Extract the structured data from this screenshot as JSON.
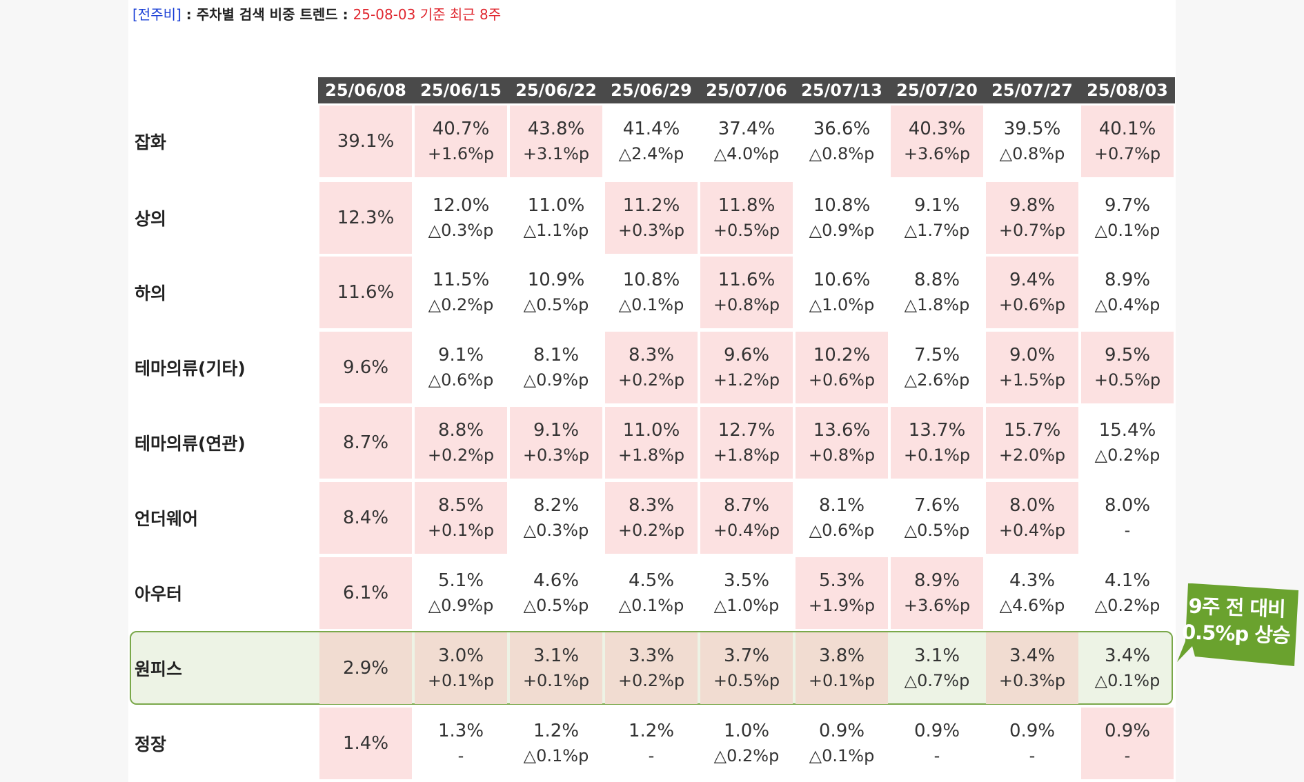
{
  "heading": {
    "tag": "[전주비]",
    "colon1": " : ",
    "title": "주차별 검색 비중 트렌드",
    "colon2": " : ",
    "basis": "25-08-03 기준 최근 8주"
  },
  "dates": [
    "25/06/08",
    "25/06/15",
    "25/06/22",
    "25/06/29",
    "25/07/06",
    "25/07/13",
    "25/07/20",
    "25/07/27",
    "25/08/03"
  ],
  "rows": [
    {
      "label": "잡화",
      "cells": [
        {
          "value": "39.1%",
          "delta": "",
          "hl": true
        },
        {
          "value": "40.7%",
          "delta": "+1.6%p",
          "hl": true
        },
        {
          "value": "43.8%",
          "delta": "+3.1%p",
          "hl": true
        },
        {
          "value": "41.4%",
          "delta": "△2.4%p",
          "hl": false
        },
        {
          "value": "37.4%",
          "delta": "△4.0%p",
          "hl": false
        },
        {
          "value": "36.6%",
          "delta": "△0.8%p",
          "hl": false
        },
        {
          "value": "40.3%",
          "delta": "+3.6%p",
          "hl": true
        },
        {
          "value": "39.5%",
          "delta": "△0.8%p",
          "hl": false
        },
        {
          "value": "40.1%",
          "delta": "+0.7%p",
          "hl": true
        }
      ]
    },
    {
      "label": "상의",
      "cells": [
        {
          "value": "12.3%",
          "delta": "",
          "hl": true
        },
        {
          "value": "12.0%",
          "delta": "△0.3%p",
          "hl": false
        },
        {
          "value": "11.0%",
          "delta": "△1.1%p",
          "hl": false
        },
        {
          "value": "11.2%",
          "delta": "+0.3%p",
          "hl": true
        },
        {
          "value": "11.8%",
          "delta": "+0.5%p",
          "hl": true
        },
        {
          "value": "10.8%",
          "delta": "△0.9%p",
          "hl": false
        },
        {
          "value": "9.1%",
          "delta": "△1.7%p",
          "hl": false
        },
        {
          "value": "9.8%",
          "delta": "+0.7%p",
          "hl": true
        },
        {
          "value": "9.7%",
          "delta": "△0.1%p",
          "hl": false
        }
      ]
    },
    {
      "label": "하의",
      "cells": [
        {
          "value": "11.6%",
          "delta": "",
          "hl": true
        },
        {
          "value": "11.5%",
          "delta": "△0.2%p",
          "hl": false
        },
        {
          "value": "10.9%",
          "delta": "△0.5%p",
          "hl": false
        },
        {
          "value": "10.8%",
          "delta": "△0.1%p",
          "hl": false
        },
        {
          "value": "11.6%",
          "delta": "+0.8%p",
          "hl": true
        },
        {
          "value": "10.6%",
          "delta": "△1.0%p",
          "hl": false
        },
        {
          "value": "8.8%",
          "delta": "△1.8%p",
          "hl": false
        },
        {
          "value": "9.4%",
          "delta": "+0.6%p",
          "hl": true
        },
        {
          "value": "8.9%",
          "delta": "△0.4%p",
          "hl": false
        }
      ]
    },
    {
      "label": "테마의류(기타)",
      "cells": [
        {
          "value": "9.6%",
          "delta": "",
          "hl": true
        },
        {
          "value": "9.1%",
          "delta": "△0.6%p",
          "hl": false
        },
        {
          "value": "8.1%",
          "delta": "△0.9%p",
          "hl": false
        },
        {
          "value": "8.3%",
          "delta": "+0.2%p",
          "hl": true
        },
        {
          "value": "9.6%",
          "delta": "+1.2%p",
          "hl": true
        },
        {
          "value": "10.2%",
          "delta": "+0.6%p",
          "hl": true
        },
        {
          "value": "7.5%",
          "delta": "△2.6%p",
          "hl": false
        },
        {
          "value": "9.0%",
          "delta": "+1.5%p",
          "hl": true
        },
        {
          "value": "9.5%",
          "delta": "+0.5%p",
          "hl": true
        }
      ]
    },
    {
      "label": "테마의류(연관)",
      "cells": [
        {
          "value": "8.7%",
          "delta": "",
          "hl": true
        },
        {
          "value": "8.8%",
          "delta": "+0.2%p",
          "hl": true
        },
        {
          "value": "9.1%",
          "delta": "+0.3%p",
          "hl": true
        },
        {
          "value": "11.0%",
          "delta": "+1.8%p",
          "hl": true
        },
        {
          "value": "12.7%",
          "delta": "+1.8%p",
          "hl": true
        },
        {
          "value": "13.6%",
          "delta": "+0.8%p",
          "hl": true
        },
        {
          "value": "13.7%",
          "delta": "+0.1%p",
          "hl": true
        },
        {
          "value": "15.7%",
          "delta": "+2.0%p",
          "hl": true
        },
        {
          "value": "15.4%",
          "delta": "△0.2%p",
          "hl": false
        }
      ]
    },
    {
      "label": "언더웨어",
      "cells": [
        {
          "value": "8.4%",
          "delta": "",
          "hl": true
        },
        {
          "value": "8.5%",
          "delta": "+0.1%p",
          "hl": true
        },
        {
          "value": "8.2%",
          "delta": "△0.3%p",
          "hl": false
        },
        {
          "value": "8.3%",
          "delta": "+0.2%p",
          "hl": true
        },
        {
          "value": "8.7%",
          "delta": "+0.4%p",
          "hl": true
        },
        {
          "value": "8.1%",
          "delta": "△0.6%p",
          "hl": false
        },
        {
          "value": "7.6%",
          "delta": "△0.5%p",
          "hl": false
        },
        {
          "value": "8.0%",
          "delta": "+0.4%p",
          "hl": true
        },
        {
          "value": "8.0%",
          "delta": "-",
          "hl": false
        }
      ]
    },
    {
      "label": "아우터",
      "cells": [
        {
          "value": "6.1%",
          "delta": "",
          "hl": true
        },
        {
          "value": "5.1%",
          "delta": "△0.9%p",
          "hl": false
        },
        {
          "value": "4.6%",
          "delta": "△0.5%p",
          "hl": false
        },
        {
          "value": "4.5%",
          "delta": "△0.1%p",
          "hl": false
        },
        {
          "value": "3.5%",
          "delta": "△1.0%p",
          "hl": false
        },
        {
          "value": "5.3%",
          "delta": "+1.9%p",
          "hl": true
        },
        {
          "value": "8.9%",
          "delta": "+3.6%p",
          "hl": true
        },
        {
          "value": "4.3%",
          "delta": "△4.6%p",
          "hl": false
        },
        {
          "value": "4.1%",
          "delta": "△0.2%p",
          "hl": false
        }
      ]
    },
    {
      "label": "원피스",
      "cells": [
        {
          "value": "2.9%",
          "delta": "",
          "hl": true
        },
        {
          "value": "3.0%",
          "delta": "+0.1%p",
          "hl": true
        },
        {
          "value": "3.1%",
          "delta": "+0.1%p",
          "hl": true
        },
        {
          "value": "3.3%",
          "delta": "+0.2%p",
          "hl": true
        },
        {
          "value": "3.7%",
          "delta": "+0.5%p",
          "hl": true
        },
        {
          "value": "3.8%",
          "delta": "+0.1%p",
          "hl": true
        },
        {
          "value": "3.1%",
          "delta": "△0.7%p",
          "hl": false
        },
        {
          "value": "3.4%",
          "delta": "+0.3%p",
          "hl": true
        },
        {
          "value": "3.4%",
          "delta": "△0.1%p",
          "hl": false
        }
      ]
    },
    {
      "label": "정장",
      "cells": [
        {
          "value": "1.4%",
          "delta": "",
          "hl": true
        },
        {
          "value": "1.3%",
          "delta": "-",
          "hl": false
        },
        {
          "value": "1.2%",
          "delta": "△0.1%p",
          "hl": false
        },
        {
          "value": "1.2%",
          "delta": "-",
          "hl": false
        },
        {
          "value": "1.0%",
          "delta": "△0.2%p",
          "hl": false
        },
        {
          "value": "0.9%",
          "delta": "△0.1%p",
          "hl": false
        },
        {
          "value": "0.9%",
          "delta": "-",
          "hl": false
        },
        {
          "value": "0.9%",
          "delta": "-",
          "hl": false
        },
        {
          "value": "0.9%",
          "delta": "-",
          "hl": true
        }
      ]
    }
  ],
  "callout": {
    "line1": "9주 전 대비",
    "line2": "0.5%p 상승"
  },
  "colors": {
    "highlight": "#fce1e1",
    "header": "#4a4a4a",
    "callout": "#6aa22e",
    "onepiece_border": "#7aa84a"
  }
}
